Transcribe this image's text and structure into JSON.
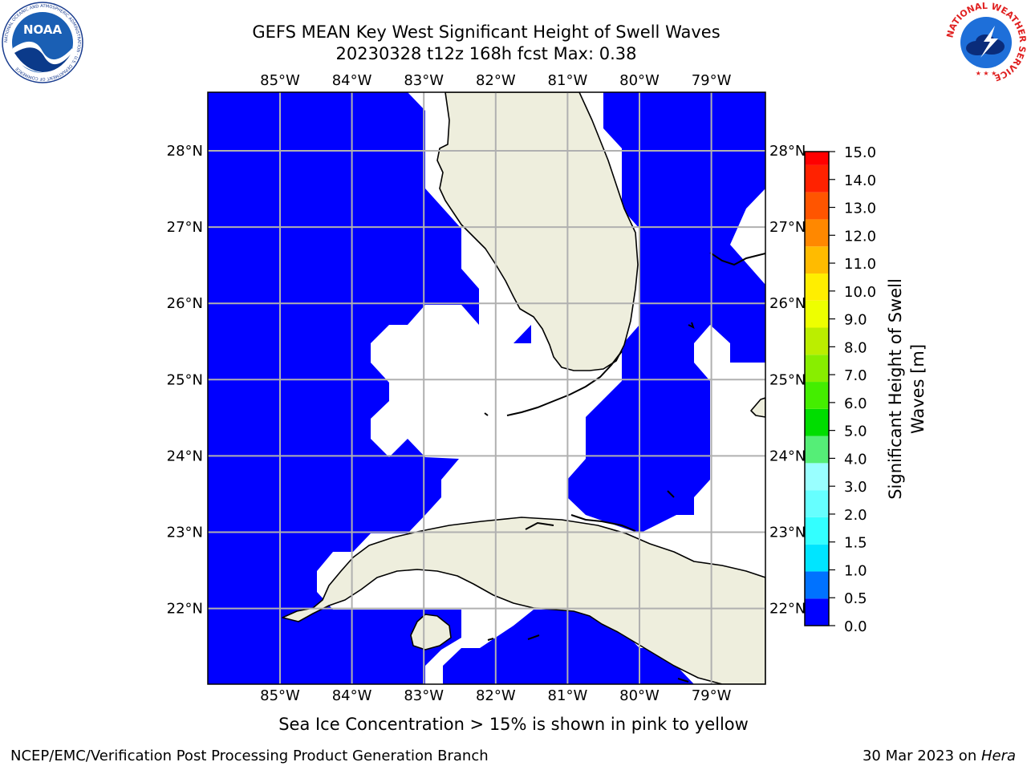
{
  "header": {
    "title_line1": "GEFS MEAN Key West Significant Height of Swell Waves",
    "title_line2": "20230328 t12z 168h fcst   Max: 0.38"
  },
  "logos": {
    "left_logo_text": "NOAA",
    "left_ring_text": "NATIONAL OCEANIC AND ATMOSPHERIC ADMINISTRATION · U.S. DEPARTMENT OF COMMERCE",
    "right_ring_text": "NATIONAL WEATHER SERVICE"
  },
  "map": {
    "lon_labels": [
      "85°W",
      "84°W",
      "83°W",
      "82°W",
      "81°W",
      "80°W",
      "79°W"
    ],
    "lat_labels": [
      "28°N",
      "27°N",
      "26°N",
      "25°N",
      "24°N",
      "23°N",
      "22°N"
    ],
    "colors": {
      "ocean_field": "#0000ff",
      "land": "#eeeedd",
      "no_data": "#ffffff",
      "grid": "#b0b0b0"
    }
  },
  "colorbar": {
    "label_line1": "Significant Height of Swell",
    "label_line2": "Waves [m]",
    "ticks": [
      "0.0",
      "0.5",
      "1.0",
      "1.5",
      "2.0",
      "3.0",
      "4.0",
      "5.0",
      "6.0",
      "7.0",
      "8.0",
      "9.0",
      "10.0",
      "11.0",
      "12.0",
      "13.0",
      "14.0",
      "15.0"
    ],
    "colors": [
      "#0000ff",
      "#0072ff",
      "#00e5ff",
      "#33ffff",
      "#66ffff",
      "#99ffff",
      "#55ee77",
      "#00dd00",
      "#44ee00",
      "#88ee00",
      "#bbee00",
      "#eeff00",
      "#ffee00",
      "#ffbb00",
      "#ff8800",
      "#ff5500",
      "#ff2200",
      "#ff0000"
    ]
  },
  "footer": {
    "note": "Sea Ice Concentration > 15% is shown in pink to yellow",
    "credit_left": "NCEP/EMC/Verification Post Processing Product Generation Branch",
    "credit_date": "30 Mar 2023 on ",
    "credit_machine": "Hera"
  }
}
